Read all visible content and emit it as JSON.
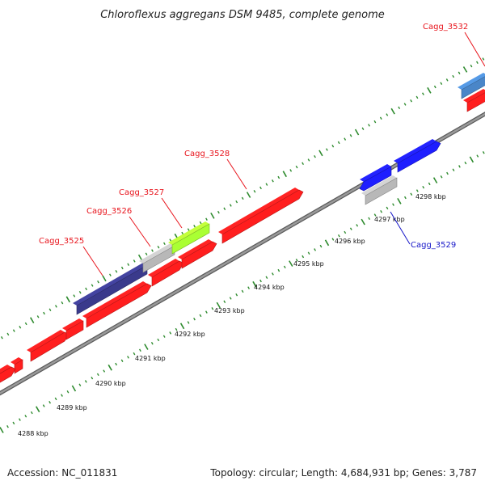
{
  "title": "Chloroflexus aggregans DSM 9485, complete genome",
  "footer": {
    "accession": "Accession: NC_011831",
    "summary": "Topology: circular; Length: 4,684,931 bp; Genes: 3,787"
  },
  "kbp_labels": [
    "4288 kbp",
    "4289 kbp",
    "4290 kbp",
    "4291 kbp",
    "4292 kbp",
    "4293 kbp",
    "4294 kbp",
    "4295 kbp",
    "4296 kbp",
    "4297 kbp",
    "4298 kbp"
  ],
  "gene_labels": [
    {
      "name": "Cagg_3525",
      "color": "#e8141c"
    },
    {
      "name": "Cagg_3526",
      "color": "#e8141c"
    },
    {
      "name": "Cagg_3527",
      "color": "#e8141c"
    },
    {
      "name": "Cagg_3528",
      "color": "#e8141c"
    },
    {
      "name": "Cagg_3529",
      "color": "#1515c8"
    },
    {
      "name": "Cagg_3532",
      "color": "#e8141c"
    }
  ],
  "colors": {
    "cds_red": "#ff1e1e",
    "navy": "#3a3a8c",
    "blue": "#1e1eff",
    "steel_blue": "#4a86c8",
    "gray": "#b8b8b8",
    "lime": "#aaff33",
    "olive": "#b8b060",
    "backbone": "#808080",
    "tick_green": "#2e8b2e"
  }
}
